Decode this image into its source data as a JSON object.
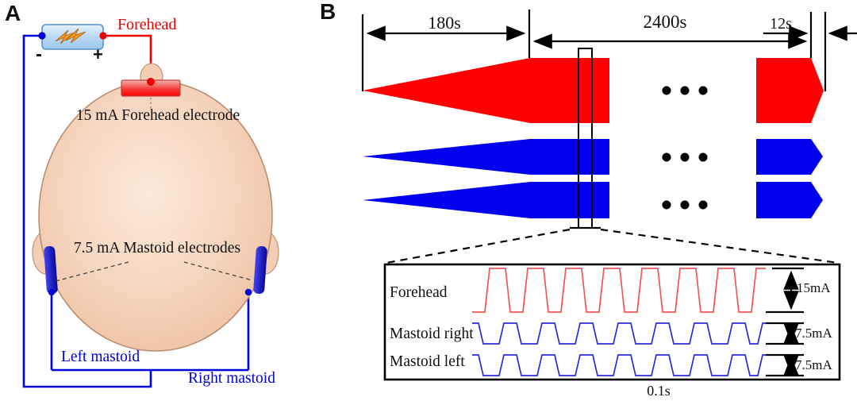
{
  "figure": {
    "panel_a": {
      "label": "A",
      "battery": {
        "minus_label": "-",
        "plus_label": "+"
      },
      "forehead_wire_label": "Forehead",
      "forehead_electrode_label": "15 mA Forehead electrode",
      "mastoid_electrodes_label": "7.5 mA Mastoid electrodes",
      "left_mastoid_label": "Left mastoid",
      "right_mastoid_label": "Right mastoid",
      "colors": {
        "anode_wire": "#e80000",
        "cathode_wire": "#0000dd",
        "skin": "#f3cdb4"
      }
    },
    "panel_b": {
      "label": "B",
      "timeline": {
        "ramp_up": "180s",
        "stimulation": "2400s",
        "ramp_down": "12s"
      },
      "colors": {
        "anode": "#ff0000",
        "cathode": "#0000ee"
      },
      "inset": {
        "pulse_count": 8,
        "time_scale_label": "0.1s",
        "rows": [
          {
            "label": "Forehead",
            "amplitude_label": "15mA",
            "trace_color": "#f15656"
          },
          {
            "label": "Mastoid right",
            "amplitude_label": "7.5mA",
            "trace_color": "#2b2be0"
          },
          {
            "label": "Mastoid left",
            "amplitude_label": "7.5mA",
            "trace_color": "#2b2be0"
          }
        ]
      }
    }
  }
}
